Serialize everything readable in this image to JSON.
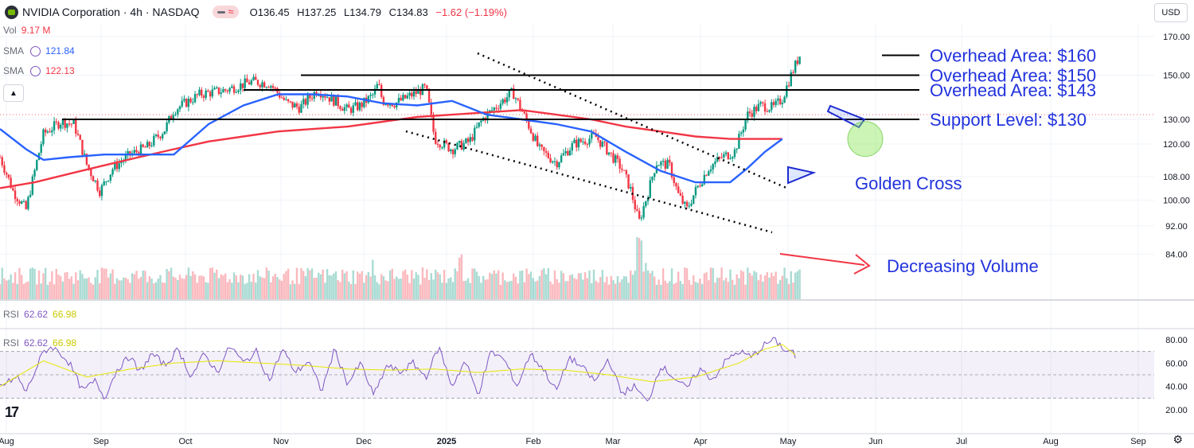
{
  "header": {
    "title": "NVIDIA Corporation · 4h · NASDAQ",
    "open": "O136.45",
    "high": "H137.25",
    "low": "L134.79",
    "close": "C134.83",
    "change": "−1.62 (−1.19%)"
  },
  "indicators": {
    "vol_label": "Vol",
    "vol_value": "9.17 M",
    "sma1_label": "SMA",
    "sma1_value": "121.84",
    "sma2_label": "SMA",
    "sma2_value": "122.13",
    "rsi_label": "RSI",
    "rsi_value": "62.62",
    "rsi_ma": "66.98"
  },
  "currency": "USD",
  "colors": {
    "sma50": "#2962ff",
    "sma200": "#f23645",
    "rsi": "#7e57c2",
    "rsi_ma": "#e6e600",
    "annotation": "#2233dd",
    "up": "#089981",
    "down": "#f23645"
  },
  "chart_data": {
    "type": "candlestick",
    "symbol": "NVDA",
    "interval": "4h",
    "price_axis": {
      "ticks": [
        170,
        150,
        130,
        120,
        108,
        100,
        92,
        84
      ],
      "tick_labels": [
        "170.00",
        "150.00",
        "130.00",
        "120.00",
        "108.00",
        "100.00",
        "92.00",
        "84.00"
      ],
      "scale": "log"
    },
    "time_axis": [
      "Aug",
      "Sep",
      "Oct",
      "Nov",
      "Dec",
      "2025",
      "Feb",
      "Mar",
      "Apr",
      "May",
      "Jun",
      "Jul",
      "Aug",
      "Sep"
    ],
    "price_path": [
      [
        0,
        115
      ],
      [
        0.015,
        103
      ],
      [
        0.03,
        97
      ],
      [
        0.04,
        110
      ],
      [
        0.05,
        124
      ],
      [
        0.07,
        129
      ],
      [
        0.085,
        128
      ],
      [
        0.1,
        112
      ],
      [
        0.115,
        103
      ],
      [
        0.13,
        111
      ],
      [
        0.15,
        116
      ],
      [
        0.17,
        119
      ],
      [
        0.19,
        126
      ],
      [
        0.2,
        134
      ],
      [
        0.23,
        141
      ],
      [
        0.26,
        143
      ],
      [
        0.29,
        147
      ],
      [
        0.31,
        146
      ],
      [
        0.33,
        137
      ],
      [
        0.345,
        135
      ],
      [
        0.365,
        143
      ],
      [
        0.385,
        138
      ],
      [
        0.4,
        134
      ],
      [
        0.415,
        136
      ],
      [
        0.43,
        141
      ],
      [
        0.435,
        146
      ],
      [
        0.44,
        138
      ],
      [
        0.455,
        137
      ],
      [
        0.47,
        140
      ],
      [
        0.49,
        144
      ],
      [
        0.5,
        122
      ],
      [
        0.52,
        118
      ],
      [
        0.54,
        121
      ],
      [
        0.555,
        130
      ],
      [
        0.575,
        137
      ],
      [
        0.59,
        142
      ],
      [
        0.605,
        130
      ],
      [
        0.62,
        118
      ],
      [
        0.64,
        113
      ],
      [
        0.66,
        120
      ],
      [
        0.685,
        123
      ],
      [
        0.7,
        117
      ],
      [
        0.715,
        111
      ],
      [
        0.725,
        104
      ],
      [
        0.735,
        93
      ],
      [
        0.745,
        102
      ],
      [
        0.755,
        113
      ],
      [
        0.77,
        112
      ],
      [
        0.78,
        102
      ],
      [
        0.79,
        97
      ],
      [
        0.8,
        103
      ],
      [
        0.815,
        111
      ],
      [
        0.83,
        115
      ],
      [
        0.845,
        117
      ],
      [
        0.86,
        132
      ],
      [
        0.875,
        136
      ],
      [
        0.89,
        135
      ],
      [
        0.9,
        139
      ],
      [
        0.91,
        150
      ],
      [
        0.92,
        160
      ]
    ],
    "sma50": [
      [
        0,
        126
      ],
      [
        0.03,
        118
      ],
      [
        0.05,
        114
      ],
      [
        0.08,
        115
      ],
      [
        0.12,
        116
      ],
      [
        0.16,
        116
      ],
      [
        0.2,
        116
      ],
      [
        0.24,
        128
      ],
      [
        0.28,
        136
      ],
      [
        0.32,
        141
      ],
      [
        0.36,
        141
      ],
      [
        0.4,
        140
      ],
      [
        0.44,
        137
      ],
      [
        0.48,
        136
      ],
      [
        0.52,
        138
      ],
      [
        0.56,
        132
      ],
      [
        0.6,
        130
      ],
      [
        0.64,
        128
      ],
      [
        0.68,
        125
      ],
      [
        0.72,
        117
      ],
      [
        0.76,
        110
      ],
      [
        0.8,
        106
      ],
      [
        0.84,
        106
      ],
      [
        0.86,
        111
      ],
      [
        0.88,
        117
      ],
      [
        0.9,
        122
      ]
    ],
    "sma200": [
      [
        0,
        104
      ],
      [
        0.04,
        106
      ],
      [
        0.08,
        109
      ],
      [
        0.12,
        112
      ],
      [
        0.16,
        115
      ],
      [
        0.2,
        118
      ],
      [
        0.24,
        121
      ],
      [
        0.28,
        123
      ],
      [
        0.32,
        125
      ],
      [
        0.36,
        126
      ],
      [
        0.4,
        127
      ],
      [
        0.44,
        129
      ],
      [
        0.48,
        131
      ],
      [
        0.52,
        132
      ],
      [
        0.56,
        133
      ],
      [
        0.6,
        134
      ],
      [
        0.64,
        132
      ],
      [
        0.68,
        130
      ],
      [
        0.72,
        127
      ],
      [
        0.76,
        125
      ],
      [
        0.8,
        123
      ],
      [
        0.84,
        122
      ],
      [
        0.87,
        122
      ],
      [
        0.9,
        122
      ]
    ],
    "horizontal_levels": [
      {
        "value": 160,
        "label": "Overhead Area: $160"
      },
      {
        "value": 150,
        "label": "Overhead Area: $150"
      },
      {
        "value": 143,
        "label": "Overhead Area: $143"
      },
      {
        "value": 130,
        "label": "Support Level: $130"
      }
    ],
    "annotations": [
      "Golden Cross",
      "Decreasing Volume"
    ],
    "volume": {
      "label": "Vol",
      "last": "9.17 M",
      "spikes": [
        [
          0.53,
          2.6
        ],
        [
          0.735,
          2.2
        ],
        [
          0.745,
          1.7
        ],
        [
          0.43,
          1.3
        ]
      ]
    },
    "rsi": {
      "ticks": [
        80,
        60,
        40,
        20
      ],
      "tick_labels": [
        "80.00",
        "60.00",
        "40.00",
        "20.00"
      ],
      "band": [
        30,
        70
      ],
      "midline": 50,
      "values": [
        [
          0,
          40
        ],
        [
          0.02,
          48
        ],
        [
          0.03,
          35
        ],
        [
          0.05,
          70
        ],
        [
          0.06,
          74
        ],
        [
          0.07,
          68
        ],
        [
          0.08,
          60
        ],
        [
          0.095,
          36
        ],
        [
          0.11,
          45
        ],
        [
          0.12,
          30
        ],
        [
          0.135,
          55
        ],
        [
          0.15,
          66
        ],
        [
          0.16,
          52
        ],
        [
          0.175,
          68
        ],
        [
          0.19,
          58
        ],
        [
          0.205,
          72
        ],
        [
          0.22,
          48
        ],
        [
          0.235,
          68
        ],
        [
          0.25,
          52
        ],
        [
          0.265,
          75
        ],
        [
          0.28,
          60
        ],
        [
          0.295,
          70
        ],
        [
          0.31,
          45
        ],
        [
          0.325,
          72
        ],
        [
          0.34,
          52
        ],
        [
          0.355,
          62
        ],
        [
          0.37,
          36
        ],
        [
          0.385,
          72
        ],
        [
          0.4,
          42
        ],
        [
          0.415,
          60
        ],
        [
          0.43,
          32
        ],
        [
          0.445,
          58
        ],
        [
          0.46,
          52
        ],
        [
          0.475,
          60
        ],
        [
          0.49,
          48
        ],
        [
          0.505,
          74
        ],
        [
          0.52,
          40
        ],
        [
          0.535,
          62
        ],
        [
          0.55,
          33
        ],
        [
          0.565,
          70
        ],
        [
          0.58,
          63
        ],
        [
          0.595,
          40
        ],
        [
          0.61,
          68
        ],
        [
          0.625,
          55
        ],
        [
          0.64,
          36
        ],
        [
          0.655,
          65
        ],
        [
          0.67,
          56
        ],
        [
          0.685,
          44
        ],
        [
          0.7,
          64
        ],
        [
          0.715,
          34
        ],
        [
          0.73,
          40
        ],
        [
          0.745,
          26
        ],
        [
          0.76,
          58
        ],
        [
          0.775,
          48
        ],
        [
          0.79,
          38
        ],
        [
          0.805,
          55
        ],
        [
          0.82,
          46
        ],
        [
          0.835,
          62
        ],
        [
          0.85,
          70
        ],
        [
          0.865,
          65
        ],
        [
          0.88,
          76
        ],
        [
          0.89,
          80
        ],
        [
          0.9,
          74
        ],
        [
          0.905,
          69
        ],
        [
          0.91,
          72
        ],
        [
          0.915,
          65
        ]
      ],
      "ma": [
        [
          0,
          40
        ],
        [
          0.05,
          62
        ],
        [
          0.1,
          48
        ],
        [
          0.15,
          55
        ],
        [
          0.2,
          60
        ],
        [
          0.25,
          62
        ],
        [
          0.3,
          60
        ],
        [
          0.35,
          58
        ],
        [
          0.4,
          55
        ],
        [
          0.45,
          54
        ],
        [
          0.5,
          55
        ],
        [
          0.55,
          52
        ],
        [
          0.6,
          55
        ],
        [
          0.65,
          54
        ],
        [
          0.7,
          50
        ],
        [
          0.75,
          44
        ],
        [
          0.8,
          48
        ],
        [
          0.85,
          60
        ],
        [
          0.88,
          72
        ],
        [
          0.9,
          76
        ],
        [
          0.915,
          67
        ]
      ]
    }
  }
}
